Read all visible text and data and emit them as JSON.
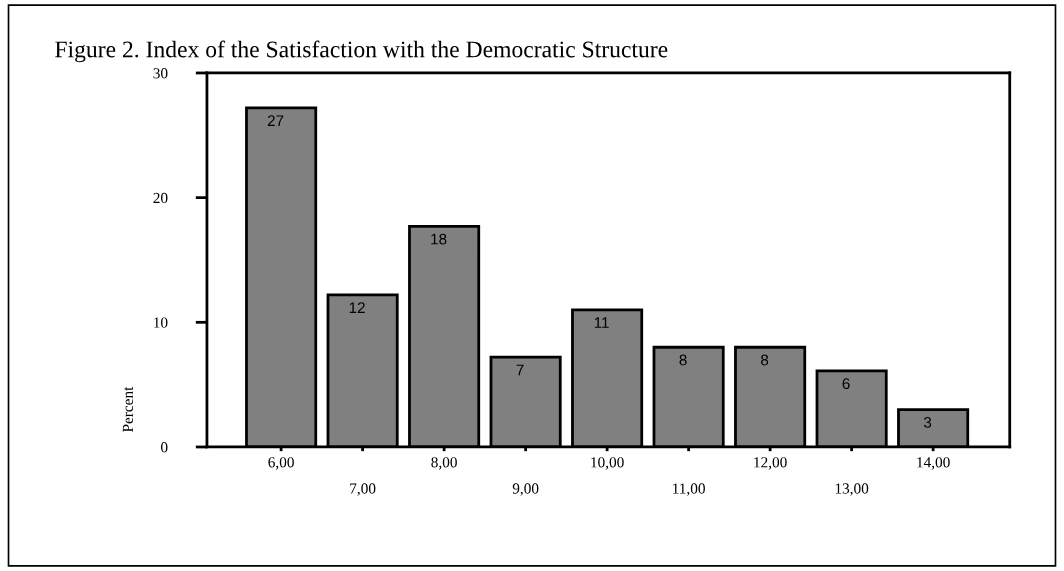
{
  "chart_data": {
    "type": "bar",
    "title": "Figure 2. Index of the Satisfaction with the Democratic Structure",
    "ylabel": "Percent",
    "categories": [
      "6,00",
      "7,00",
      "8,00",
      "9,00",
      "10,00",
      "11,00",
      "12,00",
      "13,00",
      "14,00"
    ],
    "values": [
      27.2,
      12.2,
      17.7,
      7.2,
      11.0,
      8.0,
      8.0,
      6.1,
      3.0
    ],
    "value_labels": [
      "27",
      "12",
      "18",
      "7",
      "11",
      "8",
      "8",
      "6",
      "3"
    ],
    "color": "#808080",
    "ylim": [
      0,
      30
    ],
    "yticks": [
      0,
      10,
      20,
      30
    ],
    "grid": false,
    "legend": false
  }
}
